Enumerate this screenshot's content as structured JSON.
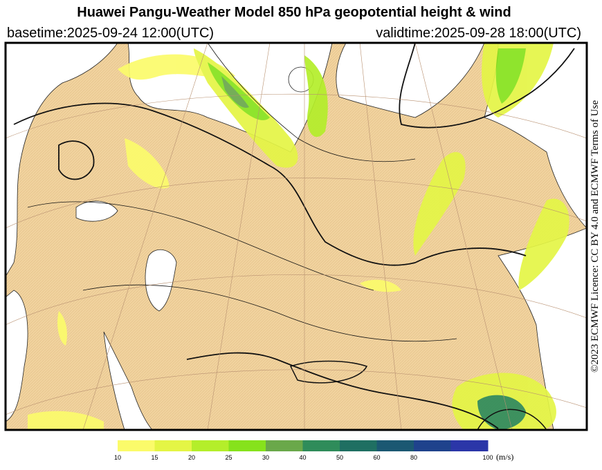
{
  "header": {
    "title": "Huawei Pangu-Weather Model 850 hPa geopotential height & wind",
    "basetime": "basetime:2025-09-24 12:00(UTC)",
    "validtime": "validtime:2025-09-28 18:00(UTC)"
  },
  "licence": "©2023 ECMWF Licence: CC BY 4.0 and ECMWF Terms of Use",
  "colorbar": {
    "ticks": [
      10,
      15,
      20,
      25,
      30,
      40,
      50,
      60,
      80,
      100
    ],
    "colors": [
      "#fbfb6a",
      "#e4f545",
      "#b4ee2a",
      "#86e21c",
      "#6aa84a",
      "#2f8c5a",
      "#1f6f62",
      "#1b5872",
      "#1f428c",
      "#2b36a8"
    ],
    "unit": "(m/s)"
  }
}
